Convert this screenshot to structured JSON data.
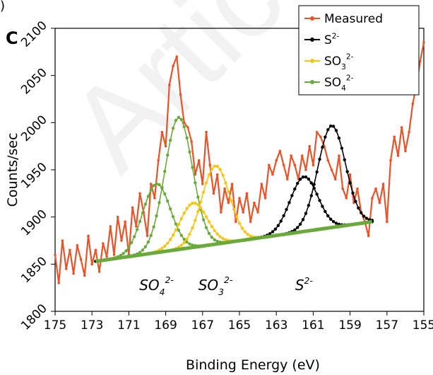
{
  "panel_label": "C",
  "corner_mark": ")",
  "watermark_text": "Article",
  "chart_data": {
    "type": "line",
    "xlabel": "Binding Energy (eV)",
    "ylabel": "Counts/sec",
    "xlim": [
      175,
      155
    ],
    "ylim": [
      1800,
      2100
    ],
    "x_reversed": true,
    "x_ticks": [
      175,
      173,
      171,
      169,
      167,
      165,
      163,
      161,
      159,
      157,
      155
    ],
    "y_ticks": [
      1800,
      1850,
      1900,
      1950,
      2000,
      2050,
      2100
    ],
    "legend_position": "top-right",
    "legend": [
      {
        "label": "Measured",
        "color": "#e8542a"
      },
      {
        "label": "S",
        "sup": "2-",
        "color": "#000000"
      },
      {
        "label": "SO",
        "sub": "3",
        "sup": "2-",
        "color": "#f5c518"
      },
      {
        "label": "SO",
        "sub": "4",
        "sup": "2-",
        "color": "#6aaa3c"
      }
    ],
    "annotations": [
      {
        "label": "SO",
        "sub": "4",
        "sup": "2-",
        "x": 169.5,
        "y": 1845
      },
      {
        "label": "SO",
        "sub": "3",
        "sup": "2-",
        "x": 166.3,
        "y": 1845
      },
      {
        "label": "S",
        "sup": "2-",
        "x": 161.5,
        "y": 1845
      }
    ],
    "series": [
      {
        "name": "Measured",
        "color": "#e8542a",
        "x": [
          175.0,
          174.8,
          174.6,
          174.4,
          174.2,
          174.0,
          173.8,
          173.6,
          173.4,
          173.2,
          173.0,
          172.8,
          172.6,
          172.4,
          172.2,
          172.0,
          171.8,
          171.6,
          171.4,
          171.2,
          171.0,
          170.8,
          170.6,
          170.4,
          170.2,
          170.0,
          169.8,
          169.6,
          169.4,
          169.2,
          169.0,
          168.8,
          168.6,
          168.4,
          168.2,
          168.0,
          167.8,
          167.6,
          167.4,
          167.2,
          167.0,
          166.8,
          166.6,
          166.4,
          166.2,
          166.0,
          165.8,
          165.6,
          165.4,
          165.2,
          165.0,
          164.8,
          164.6,
          164.4,
          164.2,
          164.0,
          163.8,
          163.6,
          163.4,
          163.2,
          163.0,
          162.8,
          162.6,
          162.4,
          162.2,
          162.0,
          161.8,
          161.6,
          161.4,
          161.2,
          161.0,
          160.8,
          160.6,
          160.4,
          160.2,
          160.0,
          159.8,
          159.6,
          159.4,
          159.2,
          159.0,
          158.8,
          158.6,
          158.4,
          158.2,
          158.0,
          157.8,
          157.6,
          157.4,
          157.2,
          157.0,
          156.8,
          156.6,
          156.4,
          156.2,
          156.0,
          155.8,
          155.6,
          155.4,
          155.2,
          155.0
        ],
        "y": [
          1860,
          1830,
          1875,
          1845,
          1865,
          1840,
          1870,
          1855,
          1838,
          1880,
          1850,
          1865,
          1842,
          1872,
          1858,
          1890,
          1860,
          1900,
          1875,
          1895,
          1860,
          1910,
          1890,
          1925,
          1905,
          1880,
          1935,
          1920,
          1960,
          1990,
          1975,
          2040,
          2060,
          2070,
          2030,
          2000,
          1995,
          1980,
          1945,
          1960,
          1935,
          1990,
          1955,
          1925,
          1945,
          1905,
          1930,
          1915,
          1935,
          1895,
          1920,
          1905,
          1925,
          1895,
          1915,
          1905,
          1935,
          1920,
          1955,
          1945,
          1960,
          1970,
          1955,
          1940,
          1965,
          1955,
          1940,
          1965,
          1950,
          1975,
          1955,
          1990,
          1985,
          1975,
          1960,
          1950,
          1940,
          1965,
          1930,
          1920,
          1945,
          1915,
          1930,
          1905,
          1895,
          1880,
          1920,
          1930,
          1915,
          1935,
          1895,
          1960,
          1985,
          1965,
          1995,
          1970,
          1990,
          2020,
          2040,
          2065,
          2085
        ]
      },
      {
        "name": "S2-",
        "color": "#000000",
        "peaks": [
          [
            161.5,
            58,
            0.75
          ],
          [
            160.0,
            108,
            0.75
          ]
        ]
      },
      {
        "name": "SO32-",
        "color": "#f5c518",
        "peaks": [
          [
            167.5,
            47,
            0.75
          ],
          [
            166.3,
            83,
            0.75
          ]
        ]
      },
      {
        "name": "SO42-",
        "color": "#6aaa3c",
        "peaks": [
          [
            169.5,
            73,
            0.75
          ],
          [
            168.3,
            140,
            0.75
          ]
        ]
      },
      {
        "name": "Background",
        "color": "#6aaa3c",
        "x": [
          172.8,
          157.8
        ],
        "y": [
          1853,
          1895
        ]
      }
    ]
  }
}
